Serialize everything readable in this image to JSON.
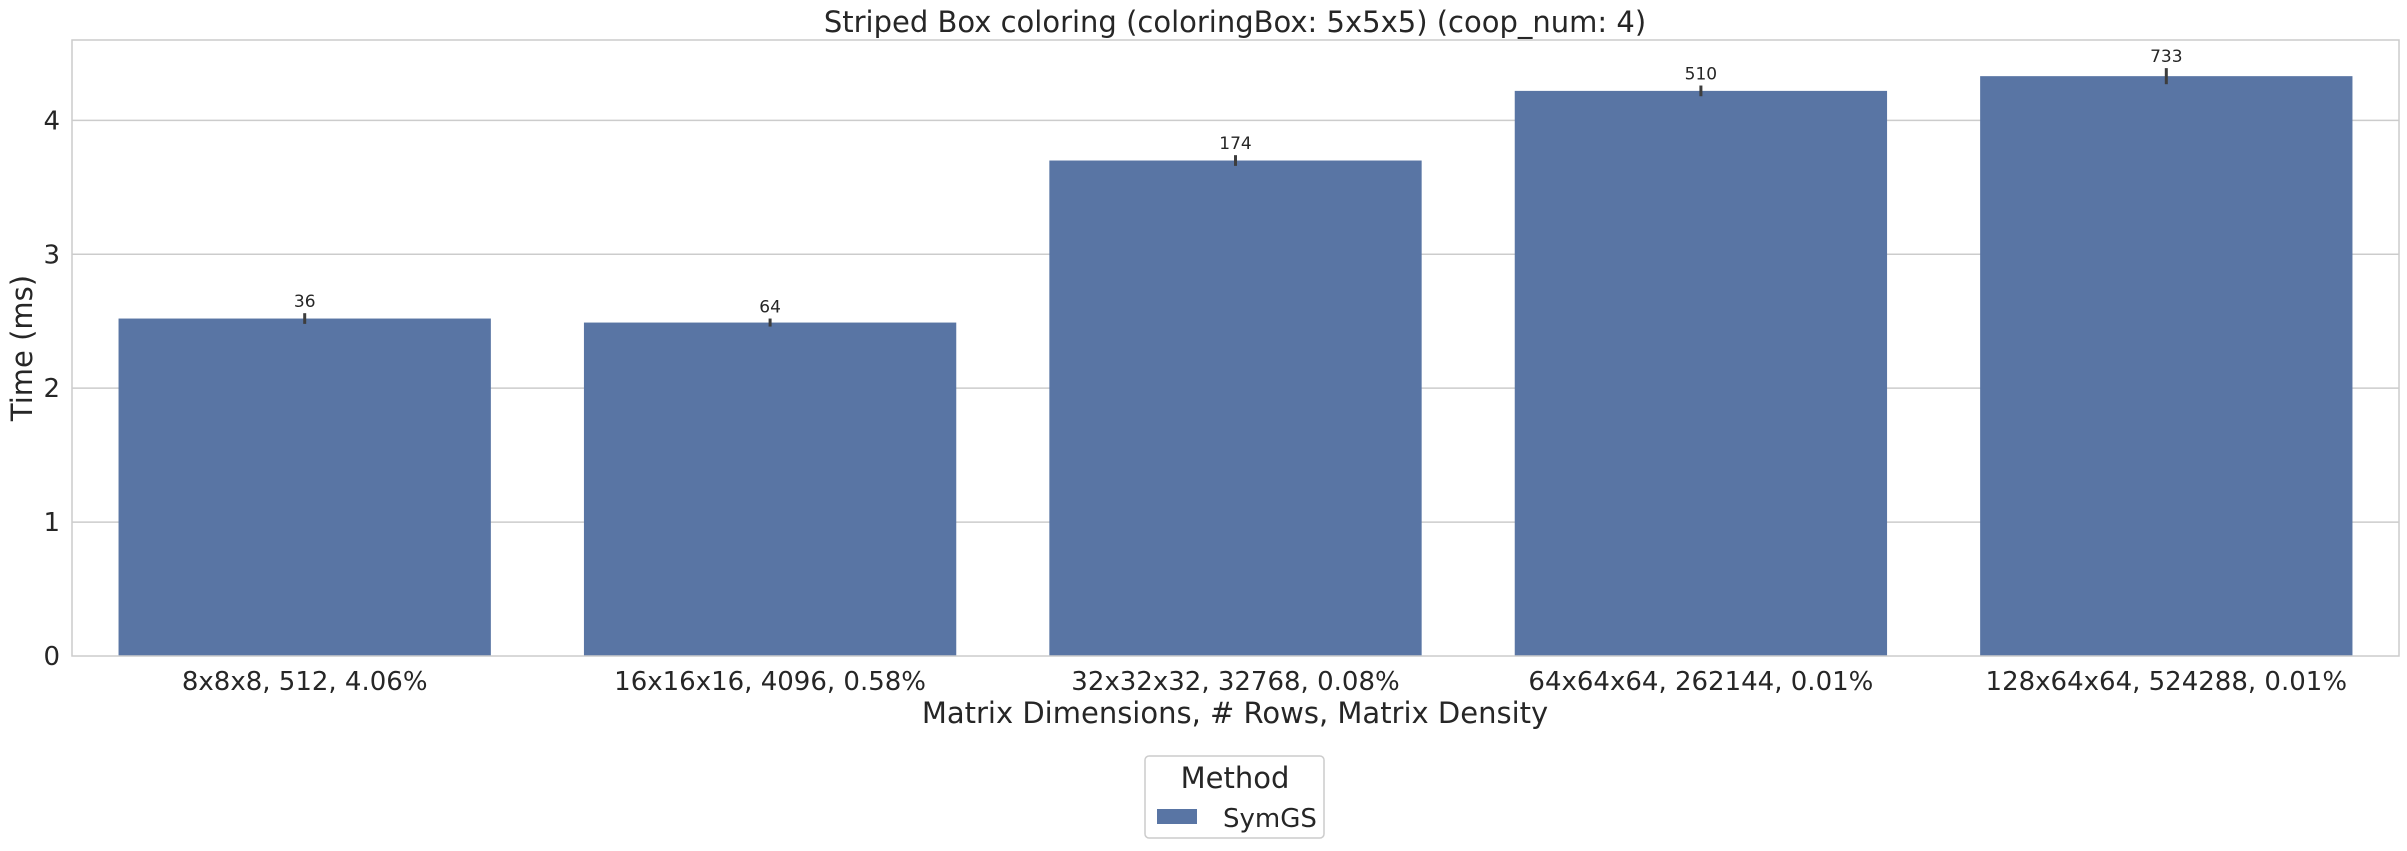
{
  "chart_data": {
    "type": "bar",
    "title": "Striped Box coloring (coloringBox: 5x5x5) (coop_num: 4)",
    "xlabel": "Matrix Dimensions, # Rows, Matrix Density",
    "ylabel": "Time (ms)",
    "ylim": [
      0,
      4.6
    ],
    "yticks": [
      0,
      1,
      2,
      3,
      4
    ],
    "grid": true,
    "legend_placement": "bottom-center",
    "legend_title": "Method",
    "categories": [
      "8x8x8, 512, 4.06%",
      "16x16x16, 4096, 0.58%",
      "32x32x32, 32768, 0.08%",
      "64x64x64, 262144, 0.01%",
      "128x64x64, 524288, 0.01%"
    ],
    "series": [
      {
        "name": "SymGS",
        "color": "#5975a4",
        "values": [
          2.52,
          2.49,
          3.7,
          4.22,
          4.33
        ],
        "error": [
          0.04,
          0.03,
          0.04,
          0.04,
          0.06
        ],
        "data_labels": [
          "36",
          "64",
          "174",
          "510",
          "733"
        ]
      }
    ]
  }
}
